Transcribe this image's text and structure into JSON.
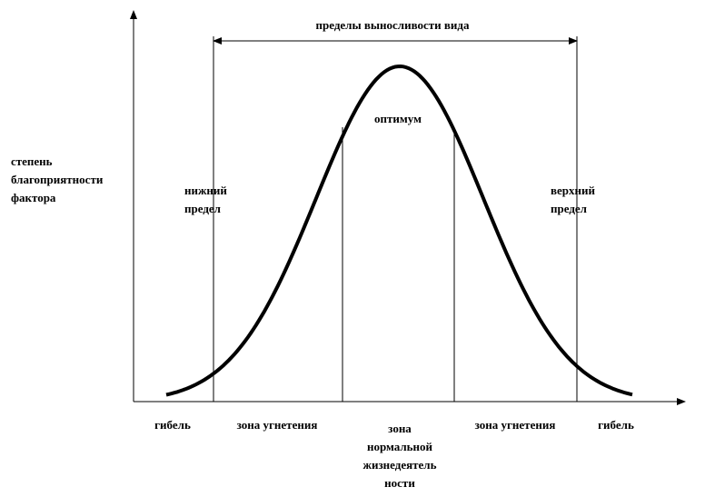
{
  "title": "пределы выносливости вида",
  "optimum": "оптимум",
  "y_axis_label": [
    "степень",
    "благоприятности",
    "фактора"
  ],
  "lower_limit": [
    "нижний",
    "предел"
  ],
  "upper_limit": [
    "верхний",
    "предел"
  ],
  "zones": {
    "death_left": "гибель",
    "suppression_left": "зона угнетения",
    "normal": [
      "зона",
      "нормальной",
      "жизнедеятель",
      "ности"
    ],
    "suppression_right": "зона угнетения",
    "death_right": "гибель"
  }
}
